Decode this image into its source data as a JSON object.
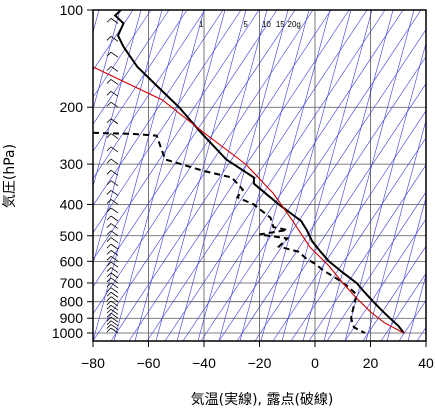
{
  "chart_data": {
    "type": "line",
    "chart_kind": "skew-T log-P diagram",
    "xlabel": "気温(実線), 露点(破線)",
    "ylabel": "気圧(hPa)",
    "x_ticks": [
      "−80",
      "−60",
      "−40",
      "−20",
      "0",
      "20",
      "40"
    ],
    "x_tick_values": [
      -80,
      -60,
      -40,
      -20,
      0,
      20,
      40
    ],
    "y_ticks": [
      "100",
      "200",
      "300",
      "400",
      "500",
      "600",
      "700",
      "800",
      "900",
      "1000"
    ],
    "y_tick_values": [
      100,
      200,
      300,
      400,
      500,
      600,
      700,
      800,
      900,
      1000
    ],
    "xlim": [
      -80,
      40
    ],
    "ylim": [
      1050,
      100
    ],
    "y_scale": "log",
    "grid": true,
    "mixing_ratio_labels": [
      "1",
      "5",
      "10",
      "15",
      "20g"
    ],
    "mixing_ratio_label_x": [
      -41,
      -25,
      -17.5,
      -12.5,
      -7.5
    ],
    "series": [
      {
        "role": "temperature",
        "color": "#000000",
        "style": "solid",
        "points": [
          [
            -70,
            100
          ],
          [
            -72,
            104
          ],
          [
            -69,
            110
          ],
          [
            -71,
            120
          ],
          [
            -69,
            130
          ],
          [
            -64,
            150
          ],
          [
            -56,
            175
          ],
          [
            -49,
            200
          ],
          [
            -41,
            240
          ],
          [
            -32,
            290
          ],
          [
            -22,
            330
          ],
          [
            -22,
            345
          ],
          [
            -13,
            400
          ],
          [
            -5,
            450
          ],
          [
            -3,
            480
          ],
          [
            -1,
            520
          ],
          [
            2,
            560
          ],
          [
            5,
            600
          ],
          [
            10,
            650
          ],
          [
            15,
            700
          ],
          [
            18,
            750
          ],
          [
            21,
            800
          ],
          [
            24,
            850
          ],
          [
            27,
            900
          ],
          [
            30,
            950
          ],
          [
            32,
            1000
          ]
        ]
      },
      {
        "role": "dewpoint",
        "color": "#000000",
        "style": "dashed",
        "points": [
          [
            -80,
            240
          ],
          [
            -65,
            242
          ],
          [
            -57,
            245
          ],
          [
            -56,
            260
          ],
          [
            -54,
            290
          ],
          [
            -40,
            315
          ],
          [
            -30,
            330
          ],
          [
            -26,
            360
          ],
          [
            -28,
            380
          ],
          [
            -22,
            400
          ],
          [
            -16,
            440
          ],
          [
            -15,
            470
          ],
          [
            -10,
            480
          ],
          [
            -20,
            495
          ],
          [
            -10,
            510
          ],
          [
            -13,
            540
          ],
          [
            -6,
            560
          ],
          [
            -3,
            590
          ],
          [
            0,
            610
          ],
          [
            3,
            640
          ],
          [
            8,
            680
          ],
          [
            12,
            720
          ],
          [
            15,
            760
          ],
          [
            14,
            820
          ],
          [
            13,
            900
          ],
          [
            14,
            960
          ],
          [
            18,
            1000
          ]
        ]
      },
      {
        "role": "reference-curve",
        "color": "#cc0000",
        "style": "solid",
        "points": [
          [
            -80,
            150
          ],
          [
            -55,
            190
          ],
          [
            -40,
            240
          ],
          [
            -25,
            300
          ],
          [
            -15,
            370
          ],
          [
            -8,
            450
          ],
          [
            -2,
            540
          ],
          [
            5,
            620
          ],
          [
            10,
            700
          ],
          [
            15,
            780
          ],
          [
            20,
            860
          ],
          [
            25,
            930
          ],
          [
            32,
            1000
          ]
        ]
      }
    ],
    "wind_barb_levels": [
      1000,
      975,
      950,
      925,
      900,
      875,
      850,
      825,
      800,
      775,
      750,
      725,
      700,
      675,
      650,
      625,
      600,
      575,
      550,
      525,
      500,
      475,
      450,
      425,
      400,
      375,
      350,
      325,
      300,
      275,
      250,
      225,
      200,
      185,
      170,
      155,
      140,
      125,
      110
    ]
  }
}
